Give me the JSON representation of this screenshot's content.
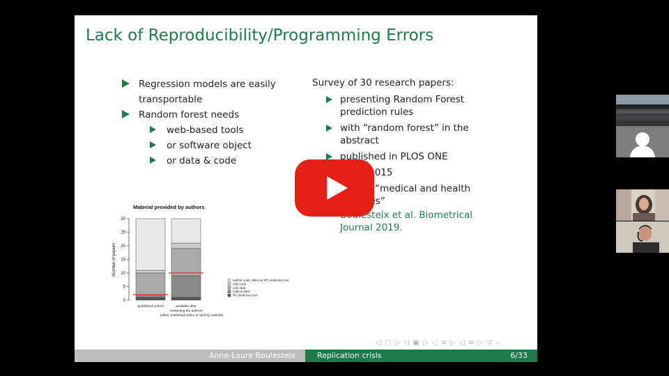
{
  "slide": {
    "title": "Lack of Reproducibility/Programming Errors",
    "left_bullets": [
      {
        "text": "Regression models are easily",
        "cont": "transportable"
      },
      {
        "text": "Random forest needs"
      }
    ],
    "left_sub_bullets": [
      "web-based tools",
      "or software object",
      "or data & code"
    ],
    "right_heading": "Survey of 30 research papers:",
    "right_bullets": [
      {
        "line1": "presenting Random Forest",
        "line2": "prediction rules"
      },
      {
        "line1": "with “random forest” in the",
        "line2": "abstract"
      },
      {
        "line1": "published in PLOS ONE",
        "line2": ""
      },
      {
        "line1": "2005–2015",
        "line2": ""
      },
      {
        "line1": "in field “medical and health",
        "line2": "sciences”"
      }
    ],
    "reference": {
      "line1": "Boulesteix et al. Biometrical",
      "line2": "Journal 2019."
    },
    "footer": {
      "author": "Anne-Laure Boulesteix",
      "section": "Replication crisis",
      "page": "6/33"
    }
  },
  "chart_data": {
    "type": "bar",
    "stacked": true,
    "title": "Material provided by authors",
    "ylabel": "Number of papers",
    "ylim": [
      0,
      30
    ],
    "yticks": [
      "0",
      "5",
      "10",
      "15",
      "20",
      "25",
      "30"
    ],
    "categories": [
      {
        "line1": "(published online)",
        "line2": "",
        "line3": ""
      },
      {
        "line1": "available after",
        "line2": "contacting the authors",
        "line3": "(either published online or sent by authors)"
      }
    ],
    "series": [
      {
        "name": "RF prediction tool",
        "values": [
          1,
          1
        ],
        "color": "#555555"
      },
      {
        "name": "code & data",
        "values": [
          1,
          8
        ],
        "color": "#888888"
      },
      {
        "name": "only data",
        "values": [
          8,
          10
        ],
        "color": "#aaaaaa"
      },
      {
        "name": "only code",
        "values": [
          1,
          2
        ],
        "color": "#cccccc"
      },
      {
        "name": "neither code, data nor RF prediction tool",
        "values": [
          19,
          9
        ],
        "color": "#e8e8e8"
      }
    ],
    "reference_lines": [
      {
        "value": 2,
        "category": 0,
        "color": "#e03030"
      },
      {
        "value": 10,
        "category": 1,
        "color": "#e03030"
      }
    ],
    "legend_position": "right"
  },
  "overlay": {
    "play_button_color": "#e52117",
    "nav_symbols": "◁ □ ▷ ◁ ▣ ▷ ◁ ≡ ▷ ◁ ≡ ▷   ↺ ⌕"
  },
  "participants": [
    {
      "name": "participant-lecture-hall"
    },
    {
      "name": "participant-no-video"
    },
    {
      "name": "participant-woman"
    },
    {
      "name": "participant-man-headset"
    }
  ]
}
